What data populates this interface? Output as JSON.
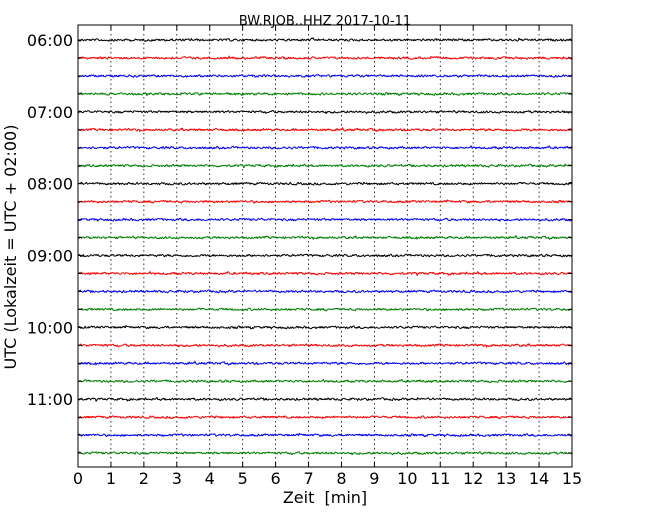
{
  "chart_data": {
    "type": "line",
    "title": "BW.RJOB..HHZ 2017-10-11",
    "xlabel": "Zeit  [min]",
    "ylabel": "UTC (Lokalzeit = UTC + 02:00)",
    "xlim": [
      0,
      15
    ],
    "x_ticks": [
      "0",
      "1",
      "2",
      "3",
      "4",
      "5",
      "6",
      "7",
      "8",
      "9",
      "10",
      "11",
      "12",
      "13",
      "14",
      "15"
    ],
    "y_tick_labels": [
      "06:00",
      "07:00",
      "08:00",
      "09:00",
      "10:00",
      "11:00"
    ],
    "grid": "vertical dotted lines at each minute",
    "trace_interval_minutes": 15,
    "trace_colors": [
      "#000000",
      "#ff0000",
      "#0000ff",
      "#007f00"
    ],
    "traces": [
      {
        "start": "06:00",
        "color": "#000000"
      },
      {
        "start": "06:15",
        "color": "#ff0000"
      },
      {
        "start": "06:30",
        "color": "#0000ff"
      },
      {
        "start": "06:45",
        "color": "#007f00"
      },
      {
        "start": "07:00",
        "color": "#000000"
      },
      {
        "start": "07:15",
        "color": "#ff0000"
      },
      {
        "start": "07:30",
        "color": "#0000ff"
      },
      {
        "start": "07:45",
        "color": "#007f00"
      },
      {
        "start": "08:00",
        "color": "#000000"
      },
      {
        "start": "08:15",
        "color": "#ff0000"
      },
      {
        "start": "08:30",
        "color": "#0000ff"
      },
      {
        "start": "08:45",
        "color": "#007f00"
      },
      {
        "start": "09:00",
        "color": "#000000"
      },
      {
        "start": "09:15",
        "color": "#ff0000"
      },
      {
        "start": "09:30",
        "color": "#0000ff"
      },
      {
        "start": "09:45",
        "color": "#007f00"
      },
      {
        "start": "10:00",
        "color": "#000000"
      },
      {
        "start": "10:15",
        "color": "#ff0000"
      },
      {
        "start": "10:30",
        "color": "#0000ff"
      },
      {
        "start": "10:45",
        "color": "#007f00"
      },
      {
        "start": "11:00",
        "color": "#000000"
      },
      {
        "start": "11:15",
        "color": "#ff0000"
      },
      {
        "start": "11:30",
        "color": "#0000ff"
      },
      {
        "start": "11:45",
        "color": "#007f00"
      }
    ]
  }
}
